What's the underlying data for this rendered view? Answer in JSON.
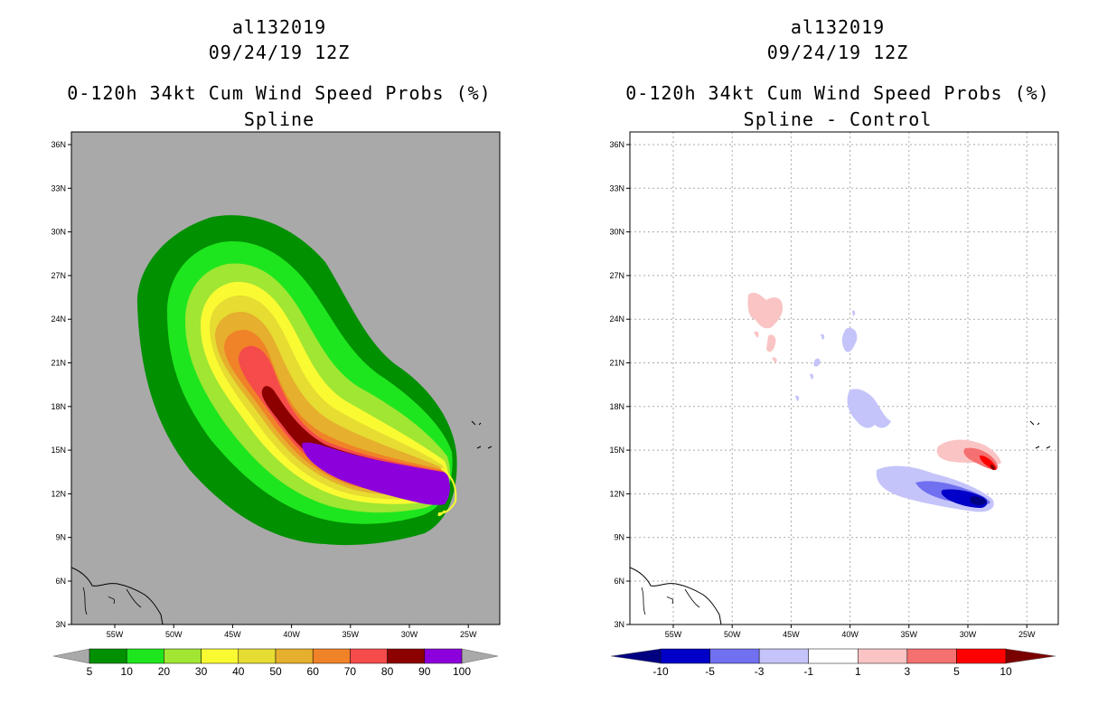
{
  "panels": [
    {
      "storm_id": "al132019",
      "datetime": "09/24/19 12Z",
      "product_title": "0-120h 34kt Cum Wind Speed Probs (%)",
      "subtitle": "Spline",
      "background_color": "#a9a9a9",
      "colorbar": {
        "colors": [
          "#009000",
          "#1ee61e",
          "#a0e632",
          "#fafa32",
          "#e6dc32",
          "#e6af2d",
          "#f08228",
          "#f54b4b",
          "#8c0000",
          "#8c00dc"
        ],
        "labels": [
          "5",
          "10",
          "20",
          "30",
          "40",
          "50",
          "60",
          "70",
          "80",
          "90",
          "100"
        ],
        "end_color": "#a9a9a9"
      }
    },
    {
      "storm_id": "al132019",
      "datetime": "09/24/19 12Z",
      "product_title": "0-120h 34kt Cum Wind Speed Probs (%)",
      "subtitle": "Spline - Control",
      "background_color": "#ffffff",
      "colorbar": {
        "colors": [
          "#0000c8",
          "#7070f0",
          "#c4c4fa",
          "#ffffff",
          "#fac4c4",
          "#f57070",
          "#ff0000"
        ],
        "labels": [
          "-10",
          "-5",
          "-3",
          "-1",
          "1",
          "3",
          "5",
          "10"
        ],
        "low_end_color": "#000080",
        "high_end_color": "#7a0000"
      }
    }
  ],
  "axes": {
    "lat_labels": [
      "36N",
      "33N",
      "30N",
      "27N",
      "24N",
      "21N",
      "18N",
      "15N",
      "12N",
      "9N",
      "6N",
      "3N"
    ],
    "lon_labels": [
      "55W",
      "50W",
      "45W",
      "40W",
      "35W",
      "30W",
      "25W"
    ]
  }
}
